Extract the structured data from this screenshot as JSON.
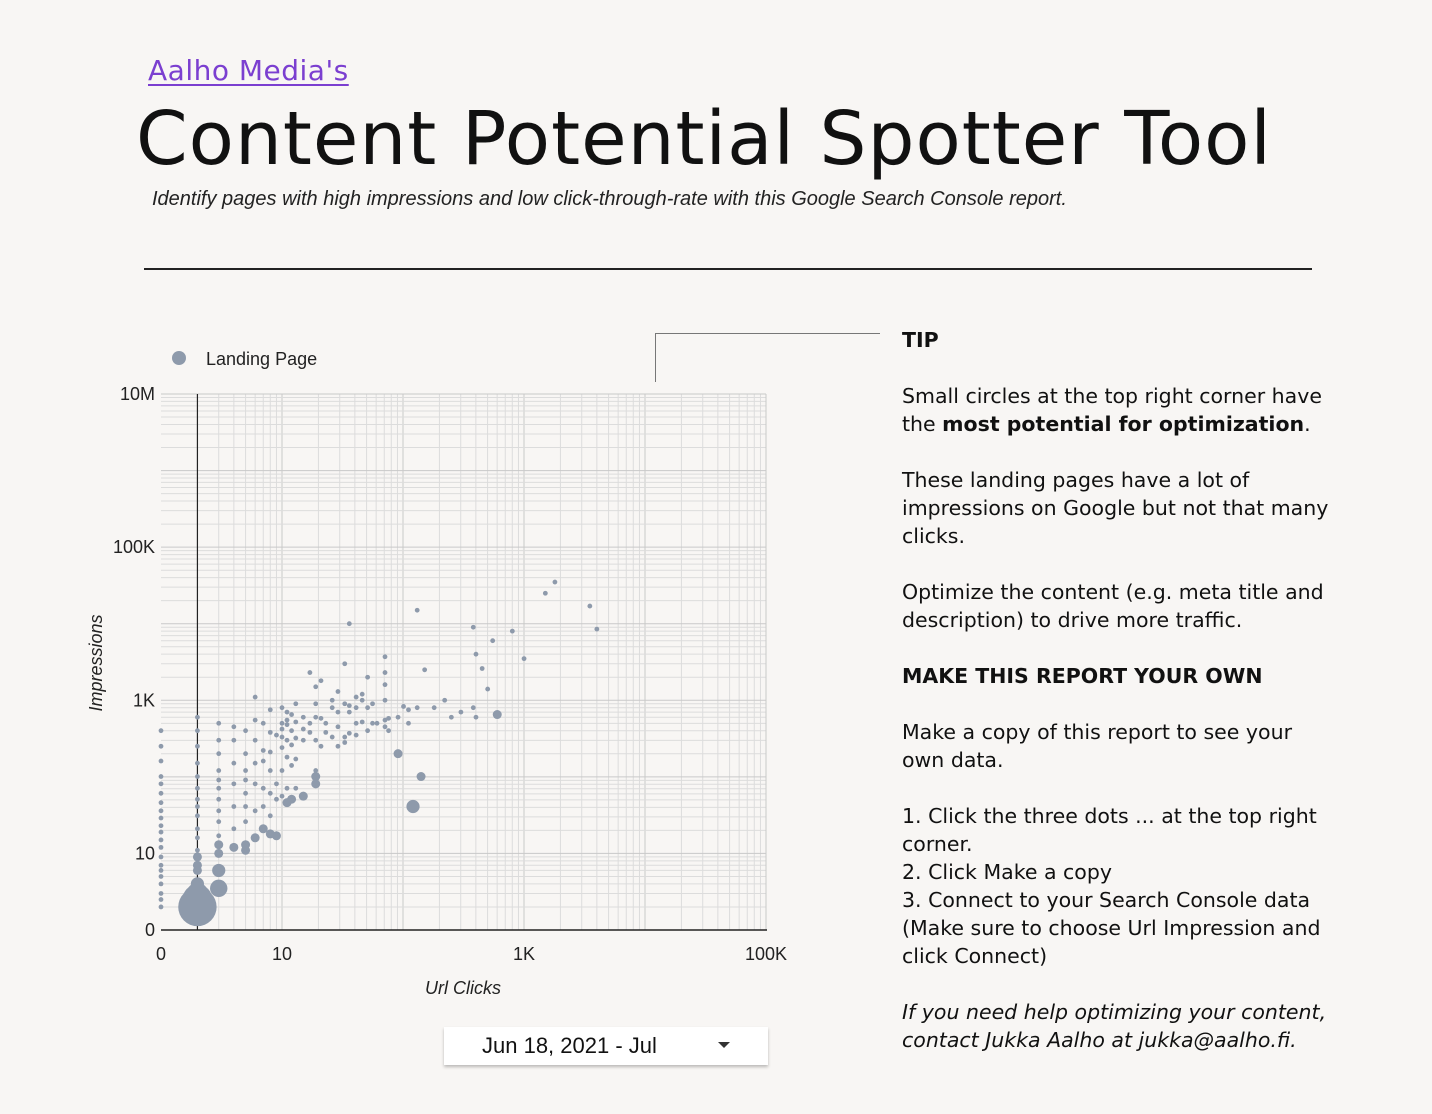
{
  "header": {
    "brand_link": "Aalho Media's",
    "title": "Content Potential Spotter Tool",
    "subtitle": "Identify pages with high impressions and low click-through-rate with this Google Search Console report."
  },
  "chart_data": {
    "type": "scatter",
    "x_scale": "log",
    "y_scale": "log",
    "xlabel": "Url Clicks",
    "ylabel": "Impressions",
    "x_ticks": [
      "0",
      "10",
      "1K",
      "100K"
    ],
    "y_ticks": [
      "10M",
      "100K",
      "1K",
      "10",
      "0"
    ],
    "legend": {
      "label": "Landing Page",
      "position": "top-left"
    },
    "grid": true,
    "color": "#8e9aab",
    "point_fields": [
      "clicks",
      "impressions",
      "size"
    ],
    "points": [
      [
        0,
        400,
        1
      ],
      [
        0,
        250,
        1
      ],
      [
        0,
        160,
        1
      ],
      [
        0,
        100,
        1
      ],
      [
        0,
        80,
        1
      ],
      [
        0,
        60,
        1
      ],
      [
        0,
        45,
        1
      ],
      [
        0,
        35,
        1
      ],
      [
        0,
        28,
        1
      ],
      [
        0,
        22,
        1
      ],
      [
        0,
        18,
        1
      ],
      [
        0,
        14,
        1
      ],
      [
        0,
        11,
        1
      ],
      [
        0,
        8,
        1
      ],
      [
        0,
        6,
        1
      ],
      [
        0,
        5,
        1
      ],
      [
        0,
        4,
        1
      ],
      [
        0,
        3,
        1
      ],
      [
        0,
        2,
        1
      ],
      [
        0,
        1.5,
        1
      ],
      [
        0,
        1,
        1
      ],
      [
        1,
        600,
        1
      ],
      [
        1,
        400,
        1
      ],
      [
        1,
        250,
        1
      ],
      [
        1,
        150,
        1
      ],
      [
        1,
        100,
        1
      ],
      [
        1,
        70,
        1
      ],
      [
        1,
        50,
        1
      ],
      [
        1,
        40,
        1
      ],
      [
        1,
        30,
        1
      ],
      [
        1,
        20,
        1
      ],
      [
        1,
        15,
        1
      ],
      [
        1,
        10,
        1
      ],
      [
        1,
        8,
        2
      ],
      [
        1,
        6,
        2
      ],
      [
        1,
        5,
        2
      ],
      [
        1,
        3,
        3
      ],
      [
        1,
        2,
        5
      ],
      [
        1,
        1.5,
        7
      ],
      [
        1,
        1,
        9
      ],
      [
        2,
        500,
        1
      ],
      [
        2,
        300,
        1
      ],
      [
        2,
        200,
        1
      ],
      [
        2,
        120,
        1
      ],
      [
        2,
        90,
        1
      ],
      [
        2,
        70,
        1
      ],
      [
        2,
        50,
        1
      ],
      [
        2,
        35,
        1
      ],
      [
        2,
        25,
        1
      ],
      [
        2,
        16,
        1
      ],
      [
        2,
        12,
        2
      ],
      [
        2,
        9,
        2
      ],
      [
        2,
        5,
        3
      ],
      [
        2,
        2.5,
        4
      ],
      [
        3,
        450,
        1
      ],
      [
        3,
        300,
        1
      ],
      [
        3,
        150,
        1
      ],
      [
        3,
        80,
        1
      ],
      [
        3,
        40,
        1
      ],
      [
        3,
        20,
        1
      ],
      [
        3,
        11,
        2
      ],
      [
        4,
        400,
        1
      ],
      [
        4,
        200,
        1
      ],
      [
        4,
        120,
        1
      ],
      [
        4,
        90,
        1
      ],
      [
        4,
        60,
        1
      ],
      [
        4,
        40,
        1
      ],
      [
        4,
        25,
        1
      ],
      [
        4,
        12,
        2
      ],
      [
        4,
        10,
        2
      ],
      [
        5,
        1100,
        1
      ],
      [
        5,
        550,
        1
      ],
      [
        5,
        300,
        1
      ],
      [
        5,
        150,
        1
      ],
      [
        5,
        80,
        1
      ],
      [
        5,
        35,
        1
      ],
      [
        5,
        15,
        2
      ],
      [
        6,
        500,
        1
      ],
      [
        6,
        220,
        1
      ],
      [
        6,
        160,
        1
      ],
      [
        6,
        70,
        1
      ],
      [
        6,
        40,
        1
      ],
      [
        6,
        20,
        2
      ],
      [
        7,
        750,
        1
      ],
      [
        7,
        380,
        1
      ],
      [
        7,
        210,
        1
      ],
      [
        7,
        120,
        1
      ],
      [
        7,
        60,
        1
      ],
      [
        7,
        30,
        1
      ],
      [
        7,
        17,
        2
      ],
      [
        8,
        350,
        1
      ],
      [
        8,
        80,
        1
      ],
      [
        8,
        50,
        1
      ],
      [
        8,
        16,
        2
      ],
      [
        9,
        800,
        1
      ],
      [
        9,
        500,
        1
      ],
      [
        9,
        420,
        1
      ],
      [
        9,
        330,
        1
      ],
      [
        9,
        240,
        1
      ],
      [
        9,
        120,
        1
      ],
      [
        9,
        55,
        1
      ],
      [
        10,
        700,
        1
      ],
      [
        10,
        550,
        1
      ],
      [
        10,
        480,
        1
      ],
      [
        10,
        300,
        1
      ],
      [
        10,
        180,
        1
      ],
      [
        10,
        70,
        1
      ],
      [
        10,
        45,
        2
      ],
      [
        11,
        650,
        1
      ],
      [
        11,
        400,
        1
      ],
      [
        11,
        260,
        1
      ],
      [
        11,
        140,
        1
      ],
      [
        11,
        50,
        2
      ],
      [
        12,
        900,
        1
      ],
      [
        12,
        520,
        1
      ],
      [
        12,
        320,
        1
      ],
      [
        12,
        170,
        1
      ],
      [
        12,
        70,
        1
      ],
      [
        14,
        600,
        1
      ],
      [
        14,
        420,
        1
      ],
      [
        14,
        300,
        1
      ],
      [
        14,
        55,
        2
      ],
      [
        16,
        2300,
        1
      ],
      [
        16,
        500,
        1
      ],
      [
        16,
        380,
        1
      ],
      [
        18,
        1500,
        1
      ],
      [
        18,
        900,
        1
      ],
      [
        18,
        600,
        1
      ],
      [
        18,
        300,
        1
      ],
      [
        18,
        120,
        1
      ],
      [
        18,
        100,
        2
      ],
      [
        18,
        80,
        2
      ],
      [
        20,
        1800,
        1
      ],
      [
        20,
        580,
        1
      ],
      [
        20,
        250,
        1
      ],
      [
        22,
        500,
        1
      ],
      [
        22,
        380,
        1
      ],
      [
        25,
        1000,
        1
      ],
      [
        25,
        800,
        1
      ],
      [
        25,
        330,
        1
      ],
      [
        28,
        1300,
        1
      ],
      [
        28,
        700,
        1
      ],
      [
        28,
        450,
        1
      ],
      [
        28,
        250,
        1
      ],
      [
        32,
        3000,
        1
      ],
      [
        32,
        900,
        1
      ],
      [
        32,
        330,
        1
      ],
      [
        32,
        280,
        1
      ],
      [
        35,
        10000,
        1
      ],
      [
        35,
        850,
        1
      ],
      [
        35,
        700,
        1
      ],
      [
        35,
        370,
        1
      ],
      [
        40,
        1100,
        1
      ],
      [
        40,
        800,
        1
      ],
      [
        40,
        500,
        1
      ],
      [
        40,
        350,
        1
      ],
      [
        45,
        1200,
        1
      ],
      [
        45,
        1000,
        1
      ],
      [
        45,
        520,
        1
      ],
      [
        50,
        2000,
        1
      ],
      [
        50,
        800,
        1
      ],
      [
        50,
        400,
        1
      ],
      [
        55,
        900,
        1
      ],
      [
        55,
        500,
        1
      ],
      [
        60,
        500,
        1
      ],
      [
        70,
        3700,
        1
      ],
      [
        70,
        2300,
        1
      ],
      [
        70,
        1600,
        1
      ],
      [
        70,
        1000,
        1
      ],
      [
        70,
        550,
        1
      ],
      [
        70,
        450,
        1
      ],
      [
        75,
        580,
        1
      ],
      [
        75,
        400,
        1
      ],
      [
        90,
        600,
        1
      ],
      [
        90,
        200,
        2
      ],
      [
        100,
        830,
        1
      ],
      [
        110,
        750,
        1
      ],
      [
        110,
        500,
        1
      ],
      [
        120,
        40,
        3
      ],
      [
        130,
        15000,
        1
      ],
      [
        130,
        800,
        1
      ],
      [
        140,
        100,
        2
      ],
      [
        150,
        2500,
        1
      ],
      [
        180,
        800,
        1
      ],
      [
        220,
        1000,
        1
      ],
      [
        250,
        600,
        1
      ],
      [
        300,
        700,
        1
      ],
      [
        380,
        9000,
        1
      ],
      [
        380,
        800,
        1
      ],
      [
        400,
        4000,
        1
      ],
      [
        400,
        600,
        1
      ],
      [
        450,
        2600,
        1
      ],
      [
        500,
        1400,
        1
      ],
      [
        550,
        6000,
        1
      ],
      [
        600,
        650,
        2
      ],
      [
        800,
        8000,
        1
      ],
      [
        1000,
        3500,
        1
      ],
      [
        1500,
        25000,
        1
      ],
      [
        1800,
        35000,
        1
      ],
      [
        3500,
        17000,
        1
      ],
      [
        4000,
        8500,
        1
      ]
    ]
  },
  "date_range": {
    "label": "Jun 18, 2021 - Jul"
  },
  "tip_panel": {
    "tip_heading": "TIP",
    "p1_before": "Small circles at the top right corner have the ",
    "p1_bold": "most potential for optimization",
    "p1_after": ".",
    "p2": "These landing pages have a lot of impressions on Google but not that many clicks.",
    "p3": "Optimize the content (e.g. meta title and description) to drive more traffic.",
    "own_heading": "MAKE THIS REPORT YOUR OWN",
    "p4": "Make a copy of this report to see your own data.",
    "step1": "1. Click the three dots ... at the top right corner.",
    "step2": "2. Click Make a copy",
    "step3": "3. Connect to your Search Console data (Make sure to choose Url Impression and click Connect)",
    "help": "If you need help optimizing your content, contact Jukka Aalho at jukka@aalho.fi."
  }
}
